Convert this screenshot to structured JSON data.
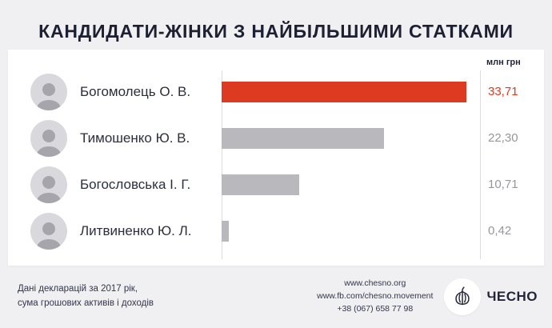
{
  "title": "КАНДИДАТИ-ЖІНКИ З НАЙБІЛЬШИМИ СТАТКАМИ",
  "unit_label": "млн грн",
  "chart_data": {
    "type": "bar",
    "orientation": "horizontal",
    "title": "КАНДИДАТИ-ЖІНКИ З НАЙБІЛЬШИМИ СТАТКАМИ",
    "unit": "млн грн",
    "categories": [
      "Богомолець О. В.",
      "Тимошенко Ю. В.",
      "Богословська І. Г.",
      "Литвиненко Ю. Л."
    ],
    "values": [
      33.71,
      22.3,
      10.71,
      0.42
    ],
    "value_labels": [
      "33,71",
      "22,30",
      "10,71",
      "0,42"
    ],
    "xlim": [
      0,
      35
    ],
    "grid": false,
    "legend": false,
    "bar_colors": [
      "#dc3b21",
      "#b9b8bc",
      "#b9b8bc",
      "#b9b8bc"
    ],
    "value_colors": [
      "#dc3b21",
      "#97969c",
      "#97969c",
      "#97969c"
    ]
  },
  "footer": {
    "note_line1": "Дані декларацій за 2017 рік,",
    "note_line2": "сума грошових активів і доходів",
    "website": "www.chesno.org",
    "facebook": "www.fb.com/chesno.movement",
    "phone": "+38 (067) 658 77 98",
    "logo_text": "ЧЕСНО"
  },
  "colors": {
    "accent": "#dc3b21",
    "bar_gray": "#b9b8bc",
    "title": "#1d2032",
    "background": "#f0eff1",
    "card": "#ffffff"
  }
}
